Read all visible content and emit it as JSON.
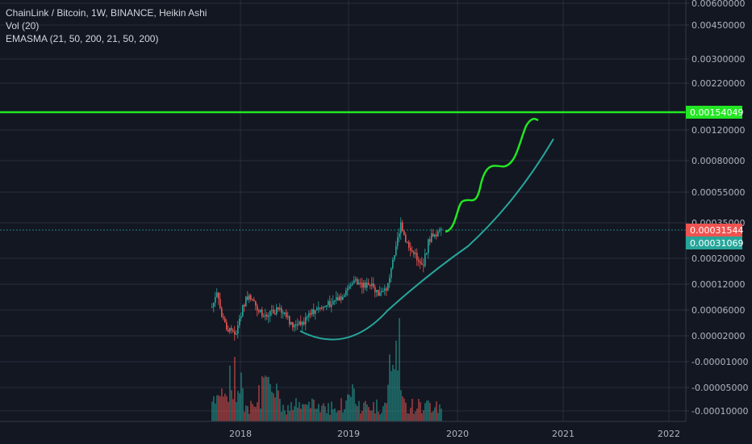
{
  "legend": {
    "title": "ChainLink / Bitcoin, 1W, BINANCE, Heikin Ashi",
    "volume": "Vol (20)",
    "indicator": "EMASMA (21, 50, 200, 21, 50, 200)"
  },
  "colors": {
    "background": "#131722",
    "up": "#26a69a",
    "down": "#ef5350",
    "resistance": "#22e622",
    "trend": "#26a69a",
    "projection": "#22e622",
    "grid": "#2a2e39",
    "text": "#b2b5be"
  },
  "price_tags": [
    {
      "label": "0.00154049",
      "value": 0.00154049,
      "color": "#22e622",
      "text_color": "#000000"
    },
    {
      "label": "0.00031544",
      "value": 0.00031544,
      "color": "#ef5350",
      "text_color": "#ffffff"
    },
    {
      "label": "0.00031069",
      "value": 0.00031069,
      "color": "#26a69a",
      "text_color": "#ffffff"
    }
  ],
  "chart_data": {
    "type": "candlestick",
    "price_axis": {
      "ticks": [
        "0.00600000",
        "0.00450000",
        "0.00300000",
        "0.00220000",
        "0.00120000",
        "0.00080000",
        "0.00055000",
        "0.00035000",
        "0.00020000",
        "0.00012000",
        "0.00006000",
        "0.00002000",
        "-0.00001000",
        "-0.00005000",
        "-0.00010000"
      ]
    },
    "time_axis": {
      "ticks": [
        "2018",
        "2019",
        "2020",
        "2021",
        "2022"
      ]
    },
    "resistance_level": 0.00154049,
    "last_close": 0.00031544,
    "ema_value": 0.00031069,
    "candles_2018_2019": "weekly series from late 2017 to late 2019"
  }
}
